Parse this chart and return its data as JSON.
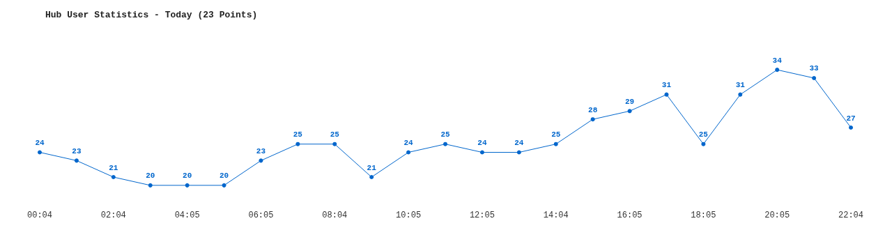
{
  "chart_data": {
    "type": "line",
    "title": "Hub User Statistics - Today (23 Points)",
    "categories": [
      "00:04",
      null,
      "02:04",
      null,
      "04:05",
      null,
      "06:05",
      null,
      "08:04",
      null,
      "10:05",
      null,
      "12:05",
      null,
      "14:04",
      null,
      "16:05",
      null,
      "18:05",
      null,
      "20:05",
      null,
      "22:04"
    ],
    "series": [
      {
        "color": "#0066cc",
        "values": [
          24,
          23,
          21,
          20,
          20,
          20,
          23,
          25,
          25,
          21,
          24,
          25,
          24,
          24,
          25,
          28,
          29,
          31,
          25,
          31,
          34,
          33,
          27
        ]
      }
    ],
    "data_labels": true,
    "marker": "circle",
    "line_style": "solid",
    "grid": false
  }
}
